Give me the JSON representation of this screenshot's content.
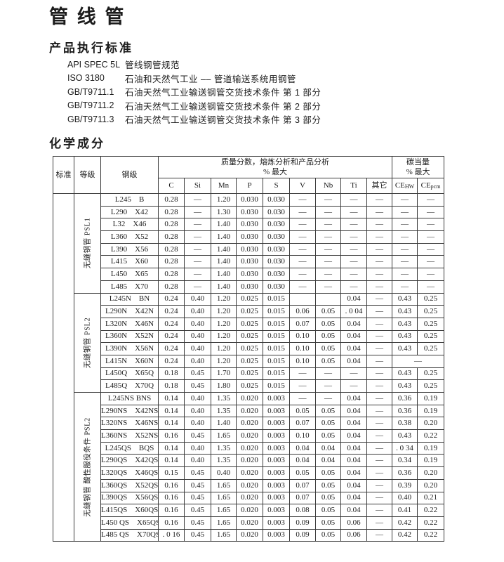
{
  "page": {
    "title": "管 线 管"
  },
  "standards_section": {
    "heading": "产品执行标准",
    "items": [
      {
        "code": "API SPEC 5L",
        "desc": "管线钢管规范"
      },
      {
        "code": "ISO 3180",
        "desc": "石油和天然气工业 –– 管道输送系统用钢管"
      },
      {
        "code": "GB/T9711.1",
        "desc": "石油天然气工业输送钢管交货技术条件 第 1 部分"
      },
      {
        "code": "GB/T9711.2",
        "desc": "石油天然气工业输送钢管交货技术条件 第 2 部分"
      },
      {
        "code": "GB/T9711.3",
        "desc": "石油天然气工业输送钢管交货技术条件 第 3 部分"
      }
    ]
  },
  "chemistry_section": {
    "heading": "化学成分",
    "table": {
      "header": {
        "col_standard": "标准",
        "col_grade_class": "等级",
        "col_steel_grade": "钢级",
        "mass_fraction_group": "质量分数，熔炼分析和产品分析",
        "mass_fraction_sub": "%  最大",
        "carbon_eq_group": "碳当量",
        "carbon_eq_sub": "%  最大",
        "elements": [
          "C",
          "Si",
          "Mn",
          "P",
          "S",
          "V",
          "Nb",
          "Ti",
          "其它"
        ],
        "ce_cols": [
          {
            "base": "CE",
            "sub": "HW"
          },
          {
            "base": "CE",
            "sub": "pcm"
          }
        ]
      },
      "groups": [
        {
          "label": "无缝钢管 PSL1",
          "rows": [
            {
              "grade": "L245    B",
              "values": [
                "0.28",
                "––",
                "1.20",
                "0.030",
                "0.030",
                "––",
                "––",
                "––",
                "––",
                "––",
                "––"
              ]
            },
            {
              "grade": "L290    X42",
              "values": [
                "0.28",
                "––",
                "1.30",
                "0.030",
                "0.030",
                "––",
                "––",
                "––",
                "––",
                "––",
                "––"
              ]
            },
            {
              "grade": "L32    X46",
              "values": [
                "0.28",
                "––",
                "1.40",
                "0.030",
                "0.030",
                "––",
                "––",
                "––",
                "––",
                "––",
                "––"
              ]
            },
            {
              "grade": "L360    X52",
              "values": [
                "0.28",
                "––",
                "1.40",
                "0.030",
                "0.030",
                "––",
                "––",
                "––",
                "––",
                "––",
                "––"
              ]
            },
            {
              "grade": "L390    X56",
              "values": [
                "0.28",
                "––",
                "1.40",
                "0.030",
                "0.030",
                "––",
                "––",
                "––",
                "––",
                "––",
                "––"
              ]
            },
            {
              "grade": "L415    X60",
              "values": [
                "0.28",
                "––",
                "1.40",
                "0.030",
                "0.030",
                "––",
                "––",
                "––",
                "––",
                "––",
                "––"
              ]
            },
            {
              "grade": "L450    X65",
              "values": [
                "0.28",
                "––",
                "1.40",
                "0.030",
                "0.030",
                "––",
                "––",
                "––",
                "––",
                "––",
                "––"
              ]
            },
            {
              "grade": "L485    X70",
              "values": [
                "0.28",
                "––",
                "1.40",
                "0.030",
                "0.030",
                "––",
                "––",
                "––",
                "––",
                "––",
                "––"
              ]
            }
          ]
        },
        {
          "label": "无缝钢管 PSL2",
          "rows": [
            {
              "grade": "L245N    BN",
              "values": [
                "0.24",
                "0.40",
                "1.20",
                "0.025",
                "0.015",
                "",
                "",
                "0.04",
                "––",
                "0.43",
                "0.25"
              ]
            },
            {
              "grade": "L290N    X42N",
              "values": [
                "0.24",
                "0.40",
                "1.20",
                "0.025",
                "0.015",
                "0.06",
                "0.05",
                ". 0 04",
                "––",
                "0.43",
                "0.25"
              ]
            },
            {
              "grade": "L320N    X46N",
              "values": [
                "0.24",
                "0.40",
                "1.20",
                "0.025",
                "0.015",
                "0.07",
                "0.05",
                "0.04",
                "––",
                "0.43",
                "0.25"
              ]
            },
            {
              "grade": "L360N    X52N",
              "values": [
                "0.24",
                "0.40",
                "1.20",
                "0.025",
                "0.015",
                "0.10",
                "0.05",
                "0.04",
                "––",
                "0.43",
                "0.25"
              ]
            },
            {
              "grade": "L390N    X56N",
              "values": [
                "0.24",
                "0.40",
                "1.20",
                "0.025",
                "0.015",
                "0.10",
                "0.05",
                "0.04",
                "––",
                "0.43",
                "0.25"
              ]
            },
            {
              "grade": "L415N    X60N",
              "values": [
                "0.24",
                "0.40",
                "1.20",
                "0.025",
                "0.015",
                "0.10",
                "0.05",
                "0.04",
                "––",
                "––"
              ],
              "merge_ce": true
            },
            {
              "grade": "L450Q    X65Q",
              "values": [
                "0.18",
                "0.45",
                "1.70",
                "0.025",
                "0.015",
                "––",
                "––",
                "––",
                "––",
                "0.43",
                "0.25"
              ]
            },
            {
              "grade": "L485Q    X70Q",
              "values": [
                "0.18",
                "0.45",
                "1.80",
                "0.025",
                "0.015",
                "––",
                "––",
                "––",
                "––",
                "0.43",
                "0.25"
              ]
            }
          ]
        },
        {
          "label": "无缝钢管 酸性服役条件 PSL2",
          "rows": [
            {
              "grade": "L245NS BNS",
              "values": [
                "0.14",
                "0.40",
                "1.35",
                "0.020",
                "0.003",
                "––",
                "––",
                "0.04",
                "––",
                "0.36",
                "0.19"
              ]
            },
            {
              "grade": "L290NS    X42NS",
              "values": [
                "0.14",
                "0.40",
                "1.35",
                "0.020",
                "0.003",
                "0.05",
                "0.05",
                "0.04",
                "––",
                "0.36",
                "0.19"
              ]
            },
            {
              "grade": "L320NS    X46NS",
              "values": [
                "0.14",
                "0.40",
                "1.40",
                "0.020",
                "0.003",
                "0.07",
                "0.05",
                "0.04",
                "––",
                "0.38",
                "0.20"
              ]
            },
            {
              "grade": "L360NS    X52NS",
              "values": [
                "0.16",
                "0.45",
                "1.65",
                "0.020",
                "0.003",
                "0.10",
                "0.05",
                "0.04",
                "––",
                "0.43",
                "0.22"
              ]
            },
            {
              "grade": "L245QS    BQS",
              "values": [
                "0.14",
                "0.40",
                "1.35",
                "0.020",
                "0.003",
                "0.04",
                "0.04",
                "0.04",
                "––",
                ". 0 34",
                "0.19"
              ]
            },
            {
              "grade": "L290QS    X42QS",
              "values": [
                "0.14",
                "0.40",
                "1.35",
                "0.020",
                "0.003",
                "0.04",
                "0.04",
                "0.04",
                "––",
                "0.34",
                "0.19"
              ]
            },
            {
              "grade": "L320QS    X46QS",
              "values": [
                "0.15",
                "0.45",
                "0.40",
                "0.020",
                "0.003",
                "0.05",
                "0.05",
                "0.04",
                "––",
                "0.36",
                "0.20"
              ]
            },
            {
              "grade": "L360QS    X52QS",
              "values": [
                "0.16",
                "0.45",
                "1.65",
                "0.020",
                "0.003",
                "0.07",
                "0.05",
                "0.04",
                "––",
                "0.39",
                "0.20"
              ]
            },
            {
              "grade": "L390QS    X56QS",
              "values": [
                "0.16",
                "0.45",
                "1.65",
                "0.020",
                "0.003",
                "0.07",
                "0.05",
                "0.04",
                "––",
                "0.40",
                "0.21"
              ]
            },
            {
              "grade": "L415QS    X60QS",
              "values": [
                "0.16",
                "0.45",
                "1.65",
                "0.020",
                "0.003",
                "0.08",
                "0.05",
                "0.04",
                "––",
                "0.41",
                "0.22"
              ]
            },
            {
              "grade": "L450 QS    X65QS",
              "values": [
                "0.16",
                "0.45",
                "1.65",
                "0.020",
                "0.003",
                "0.09",
                "0.05",
                "0.06",
                "––",
                "0.42",
                "0.22"
              ]
            },
            {
              "grade": "L485 QS    X70QS",
              "values": [
                ". 0 16",
                "0.45",
                "1.65",
                "0.020",
                "0.003",
                "0.09",
                "0.05",
                "0.06",
                "––",
                "0.42",
                "0.22"
              ]
            }
          ]
        }
      ]
    }
  }
}
